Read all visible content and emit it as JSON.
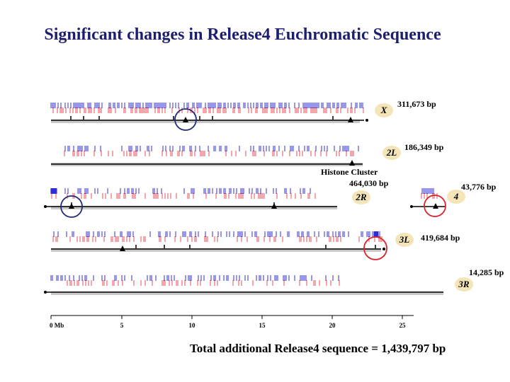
{
  "title": "Significant changes in Release4 Euchromatic Sequence",
  "total_text": "Total additional Release4 sequence = 1,439,797 bp",
  "annotation": "Histone Cluster",
  "colors": {
    "title": "#1d1f6e",
    "blue_ticks": "#2f2fd8",
    "red_ticks": "#e0505a",
    "badge_fill": "#f3e5b8",
    "circle_navy": "#1f2a7a",
    "circle_red": "#e0202a",
    "band": "#c8c8c8"
  },
  "arms": [
    {
      "id": "X",
      "label": "X",
      "bp": "311,673 bp"
    },
    {
      "id": "2L",
      "label": "2L",
      "bp": "186,349 bp"
    },
    {
      "id": "2R",
      "label": "2R",
      "bp": "464,030 bp"
    },
    {
      "id": "4",
      "label": "4",
      "bp": "43,776 bp"
    },
    {
      "id": "3L",
      "label": "3L",
      "bp": "419,684 bp"
    },
    {
      "id": "3R",
      "label": "3R",
      "bp": "14,285 bp"
    }
  ],
  "axis": {
    "unit": "Mb",
    "ticks": [
      "0",
      "5",
      "10",
      "15",
      "20",
      "25"
    ],
    "first_label": "0 Mb"
  }
}
